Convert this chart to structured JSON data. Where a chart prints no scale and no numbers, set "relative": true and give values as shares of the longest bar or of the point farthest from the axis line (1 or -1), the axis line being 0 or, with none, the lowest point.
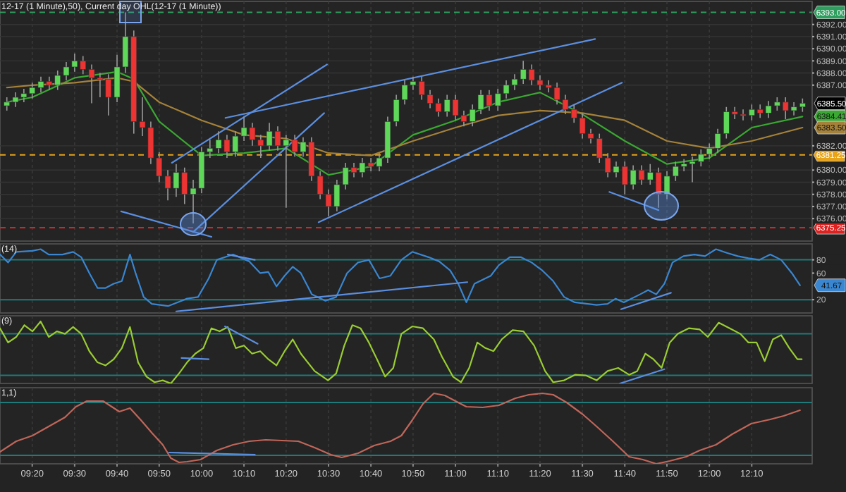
{
  "chart_data": [
    {
      "type": "candlestick",
      "title": "12-17 (1 Minute),50), Current day OHL(12-17 (1 Minute))",
      "tick_labels": "y",
      "grid": true,
      "xlim": [
        9.206,
        12.405
      ],
      "xticks": [
        {
          "value": 9.333,
          "label": null
        },
        {
          "value": 9.5,
          "label": null
        },
        {
          "value": 9.667,
          "label": null
        },
        {
          "value": 9.833,
          "label": null
        },
        {
          "value": 10,
          "label": null
        },
        {
          "value": 10.167,
          "label": null
        },
        {
          "value": 10.333,
          "label": null
        },
        {
          "value": 10.5,
          "label": null
        },
        {
          "value": 10.667,
          "label": null
        },
        {
          "value": 10.833,
          "label": null
        },
        {
          "value": 11,
          "label": null
        },
        {
          "value": 11.167,
          "label": null
        },
        {
          "value": 11.333,
          "label": null
        },
        {
          "value": 11.5,
          "label": null
        },
        {
          "value": 11.667,
          "label": null
        },
        {
          "value": 11.833,
          "label": null
        },
        {
          "value": 12,
          "label": null
        },
        {
          "value": 12.167,
          "label": null
        }
      ],
      "ylim": [
        6374.15,
        6393.9
      ],
      "yticks": [
        {
          "value": 6376,
          "label": "6376.00"
        },
        {
          "value": 6377,
          "label": "6377.00"
        },
        {
          "value": 6378,
          "label": "6378.00"
        },
        {
          "value": 6379,
          "label": "6379.00"
        },
        {
          "value": 6380,
          "label": "6380.00"
        },
        {
          "value": 6382,
          "label": "6382.00"
        },
        {
          "value": 6387,
          "label": "6387.00"
        },
        {
          "value": 6388,
          "label": "6388.00"
        },
        {
          "value": 6389,
          "label": "6389.00"
        },
        {
          "value": 6390,
          "label": "6390.00"
        },
        {
          "value": 6391,
          "label": "6391.00"
        },
        {
          "value": 6392,
          "label": "6392.00"
        }
      ],
      "x": [
        9.233,
        9.267,
        9.3,
        9.333,
        9.367,
        9.4,
        9.433,
        9.467,
        9.5,
        9.533,
        9.567,
        9.6,
        9.633,
        9.667,
        9.7,
        9.733,
        9.767,
        9.8,
        9.833,
        9.867,
        9.9,
        9.933,
        9.967,
        10,
        10.033,
        10.067,
        10.1,
        10.133,
        10.167,
        10.2,
        10.233,
        10.267,
        10.3,
        10.333,
        10.367,
        10.4,
        10.433,
        10.467,
        10.5,
        10.533,
        10.567,
        10.6,
        10.633,
        10.667,
        10.7,
        10.733,
        10.767,
        10.8,
        10.833,
        10.867,
        10.9,
        10.933,
        10.967,
        11,
        11.033,
        11.067,
        11.1,
        11.133,
        11.167,
        11.2,
        11.233,
        11.267,
        11.3,
        11.333,
        11.367,
        11.4,
        11.433,
        11.467,
        11.5,
        11.533,
        11.567,
        11.6,
        11.633,
        11.667,
        11.7,
        11.733,
        11.767,
        11.8,
        11.833,
        11.867,
        11.9,
        11.933,
        11.967,
        12,
        12.033,
        12.067,
        12.1,
        12.133,
        12.167,
        12.2,
        12.233,
        12.267,
        12.3,
        12.333,
        12.367
      ],
      "ohlc": [
        [
          6385.3,
          6386.0,
          6384.9,
          6385.6
        ],
        [
          6385.6,
          6386.4,
          6385.2,
          6386.0
        ],
        [
          6386.0,
          6386.7,
          6385.6,
          6386.3
        ],
        [
          6386.3,
          6387.2,
          6385.9,
          6386.8
        ],
        [
          6386.8,
          6387.7,
          6386.4,
          6387.3
        ],
        [
          6387.3,
          6387.7,
          6386.6,
          6387.0
        ],
        [
          6387.0,
          6388.2,
          6386.6,
          6387.8
        ],
        [
          6387.8,
          6388.9,
          6387.4,
          6388.5
        ],
        [
          6388.5,
          6389.6,
          6388.1,
          6389.0
        ],
        [
          6389.0,
          6389.4,
          6387.9,
          6388.3
        ],
        [
          6388.3,
          6388.7,
          6385.5,
          6387.6
        ],
        [
          6387.6,
          6388.0,
          6386.0,
          6387.5
        ],
        [
          6387.5,
          6387.9,
          6384.5,
          6386.0
        ],
        [
          6386.0,
          6389.5,
          6385.6,
          6388.5
        ],
        [
          6388.5,
          6393.0,
          6388.0,
          6391.0
        ],
        [
          6391.0,
          6391.5,
          6383.0,
          6384.0
        ],
        [
          6384.0,
          6386.0,
          6382.8,
          6383.5
        ],
        [
          6383.5,
          6384.0,
          6380.5,
          6381.0
        ],
        [
          6381.0,
          6381.5,
          6379.0,
          6379.5
        ],
        [
          6379.5,
          6380.0,
          6377.5,
          6378.5
        ],
        [
          6378.5,
          6380.5,
          6377.8,
          6379.8
        ],
        [
          6379.8,
          6380.2,
          6377.2,
          6378.0
        ],
        [
          6378.0,
          6379.2,
          6375.6,
          6378.5
        ],
        [
          6378.5,
          6381.9,
          6378.1,
          6381.5
        ],
        [
          6381.5,
          6382.5,
          6381.0,
          6381.8
        ],
        [
          6381.8,
          6383.2,
          6381.4,
          6382.5
        ],
        [
          6382.5,
          6382.9,
          6381.0,
          6381.5
        ],
        [
          6381.5,
          6383.2,
          6381.1,
          6382.8
        ],
        [
          6382.8,
          6384.4,
          6382.4,
          6383.5
        ],
        [
          6383.5,
          6383.9,
          6382.0,
          6382.5
        ],
        [
          6382.5,
          6382.9,
          6381.0,
          6382.0
        ],
        [
          6382.0,
          6383.9,
          6381.6,
          6383.2
        ],
        [
          6383.2,
          6383.6,
          6381.6,
          6382.0
        ],
        [
          6382.0,
          6382.9,
          6376.9,
          6382.5
        ],
        [
          6382.5,
          6382.9,
          6381.1,
          6381.5
        ],
        [
          6381.5,
          6382.7,
          6381.1,
          6382.3
        ],
        [
          6382.3,
          6382.7,
          6379.1,
          6379.5
        ],
        [
          6379.5,
          6379.9,
          6377.6,
          6378.0
        ],
        [
          6378.0,
          6378.4,
          6376.2,
          6377.0
        ],
        [
          6377.0,
          6379.2,
          6376.6,
          6378.8
        ],
        [
          6378.8,
          6380.6,
          6378.4,
          6380.2
        ],
        [
          6380.2,
          6380.6,
          6379.4,
          6379.8
        ],
        [
          6379.8,
          6381.0,
          6379.4,
          6380.6
        ],
        [
          6380.6,
          6381.0,
          6379.9,
          6380.3
        ],
        [
          6380.3,
          6381.4,
          6379.9,
          6381.0
        ],
        [
          6381.0,
          6384.4,
          6380.6,
          6384.0
        ],
        [
          6384.0,
          6386.2,
          6383.6,
          6385.8
        ],
        [
          6385.8,
          6387.4,
          6385.4,
          6387.0
        ],
        [
          6387.0,
          6387.7,
          6386.6,
          6387.3
        ],
        [
          6387.3,
          6387.7,
          6385.8,
          6386.2
        ],
        [
          6386.2,
          6386.6,
          6385.1,
          6385.5
        ],
        [
          6385.5,
          6385.9,
          6384.4,
          6384.8
        ],
        [
          6384.8,
          6386.2,
          6384.4,
          6385.8
        ],
        [
          6385.8,
          6386.2,
          6384.1,
          6384.5
        ],
        [
          6384.5,
          6384.9,
          6383.6,
          6384.0
        ],
        [
          6384.0,
          6385.4,
          6383.6,
          6385.0
        ],
        [
          6385.0,
          6386.6,
          6384.6,
          6386.2
        ],
        [
          6386.2,
          6386.6,
          6384.9,
          6385.3
        ],
        [
          6385.3,
          6386.7,
          6384.9,
          6386.3
        ],
        [
          6386.3,
          6387.4,
          6385.9,
          6387.0
        ],
        [
          6387.0,
          6387.9,
          6386.6,
          6387.5
        ],
        [
          6387.5,
          6389.0,
          6387.1,
          6388.3
        ],
        [
          6388.3,
          6388.7,
          6387.0,
          6387.4
        ],
        [
          6387.4,
          6387.8,
          6386.6,
          6387.0
        ],
        [
          6387.0,
          6387.4,
          6386.4,
          6386.8
        ],
        [
          6386.8,
          6387.2,
          6385.4,
          6385.8
        ],
        [
          6385.8,
          6386.2,
          6384.6,
          6385.0
        ],
        [
          6385.0,
          6385.4,
          6383.9,
          6384.3
        ],
        [
          6384.3,
          6384.7,
          6382.6,
          6383.0
        ],
        [
          6383.0,
          6383.4,
          6382.2,
          6382.6
        ],
        [
          6382.6,
          6383.0,
          6380.6,
          6381.0
        ],
        [
          6381.0,
          6381.4,
          6379.4,
          6379.8
        ],
        [
          6379.8,
          6380.7,
          6379.4,
          6380.3
        ],
        [
          6380.3,
          6380.7,
          6378.0,
          6378.8
        ],
        [
          6378.8,
          6380.4,
          6378.4,
          6380.0
        ],
        [
          6380.0,
          6380.4,
          6378.8,
          6379.2
        ],
        [
          6379.2,
          6380.5,
          6378.8,
          6379.8
        ],
        [
          6379.8,
          6380.2,
          6376.9,
          6378.0
        ],
        [
          6378.0,
          6379.9,
          6377.6,
          6379.5
        ],
        [
          6379.5,
          6380.7,
          6379.1,
          6380.3
        ],
        [
          6380.3,
          6380.9,
          6379.9,
          6380.5
        ],
        [
          6380.5,
          6381.1,
          6379.0,
          6380.7
        ],
        [
          6380.7,
          6381.7,
          6380.3,
          6381.3
        ],
        [
          6381.3,
          6382.2,
          6380.9,
          6381.8
        ],
        [
          6381.8,
          6383.4,
          6381.4,
          6383.0
        ],
        [
          6383.0,
          6385.2,
          6382.6,
          6384.8
        ],
        [
          6384.8,
          6385.2,
          6384.2,
          6384.6
        ],
        [
          6384.6,
          6385.0,
          6384.1,
          6384.5
        ],
        [
          6384.5,
          6385.4,
          6384.1,
          6385.0
        ],
        [
          6385.0,
          6385.4,
          6384.3,
          6384.7
        ],
        [
          6384.7,
          6385.7,
          6384.3,
          6385.3
        ],
        [
          6385.3,
          6386.0,
          6384.9,
          6385.6
        ],
        [
          6385.6,
          6386.0,
          6384.2,
          6384.9
        ],
        [
          6384.9,
          6385.6,
          6384.5,
          6385.2
        ],
        [
          6385.2,
          6385.9,
          6384.8,
          6385.5
        ]
      ],
      "series": [
        {
          "type": "line",
          "color": "#3aa832",
          "x": [
            9.233,
            9.333,
            9.5,
            9.667,
            9.733,
            9.833,
            10,
            10.167,
            10.333,
            10.5,
            10.667,
            10.833,
            11,
            11.167,
            11.333,
            11.5,
            11.667,
            11.833,
            12,
            12.167,
            12.367
          ],
          "values": [
            6385.6,
            6386.0,
            6387.6,
            6388.1,
            6387.5,
            6384.0,
            6381.2,
            6381.4,
            6381.8,
            6379.6,
            6380.3,
            6382.9,
            6384.1,
            6385.6,
            6386.4,
            6384.6,
            6382.4,
            6380.5,
            6381.0,
            6383.5,
            6384.41
          ]
        },
        {
          "type": "line",
          "color": "#a5823a",
          "x": [
            9.233,
            9.333,
            9.5,
            9.667,
            9.733,
            9.833,
            10,
            10.167,
            10.333,
            10.5,
            10.667,
            10.833,
            11,
            11.167,
            11.333,
            11.5,
            11.667,
            11.833,
            12,
            12.167,
            12.367
          ],
          "values": [
            6386.8,
            6387.0,
            6387.2,
            6387.6,
            6387.3,
            6385.6,
            6384.1,
            6382.9,
            6382.6,
            6381.4,
            6381.2,
            6382.4,
            6383.5,
            6384.5,
            6384.9,
            6384.7,
            6384.1,
            6382.4,
            6381.8,
            6382.4,
            6383.5
          ]
        },
        {
          "type": "line",
          "color": "#5b8ee0",
          "x": [
            9.683,
            10.039
          ],
          "values": [
            6376.6,
            6374.5
          ]
        },
        {
          "type": "line",
          "color": "#5b8ee0",
          "x": [
            9.883,
            10.494
          ],
          "values": [
            6380.6,
            6388.7
          ]
        },
        {
          "type": "line",
          "color": "#5b8ee0",
          "x": [
            10.094,
            11.55
          ],
          "values": [
            6384.3,
            6390.8
          ]
        },
        {
          "type": "line",
          "color": "#5b8ee0",
          "x": [
            9.967,
            10.483
          ],
          "values": [
            6374.9,
            6384.7
          ]
        },
        {
          "type": "line",
          "color": "#5b8ee0",
          "x": [
            10.461,
            11.656
          ],
          "values": [
            6375.7,
            6387.2
          ]
        },
        {
          "type": "line",
          "color": "#5b8ee0",
          "x": [
            11.606,
            11.8
          ],
          "values": [
            6378.2,
            6376.7
          ]
        }
      ],
      "ref_lines": [
        {
          "axis": "y",
          "value": 6393,
          "label": "6393.00",
          "color": "#2e9e5e",
          "line_style": "dashed"
        },
        {
          "axis": "y",
          "value": 6381.25,
          "label": "6381.25",
          "color": "#e8a317",
          "line_style": "dashed"
        },
        {
          "axis": "y",
          "value": 6375.25,
          "label": "6375.25",
          "color": "#dd2222",
          "line_style": "dashed"
        }
      ],
      "annotations": [
        {
          "text": "6385.50",
          "y": 6385.5
        },
        {
          "text": "6384.41",
          "y": 6384.41
        },
        {
          "text": "6383.50",
          "y": 6383.5
        }
      ]
    },
    {
      "type": "line",
      "title": "(14)",
      "tick_labels": "y",
      "grid": "x",
      "xlim": [
        9.206,
        12.405
      ],
      "xticks": [
        {
          "value": 9.333,
          "label": null
        },
        {
          "value": 9.5,
          "label": null
        },
        {
          "value": 9.667,
          "label": null
        },
        {
          "value": 9.833,
          "label": null
        },
        {
          "value": 10,
          "label": null
        },
        {
          "value": 10.167,
          "label": null
        },
        {
          "value": 10.333,
          "label": null
        },
        {
          "value": 10.5,
          "label": null
        },
        {
          "value": 10.667,
          "label": null
        },
        {
          "value": 10.833,
          "label": null
        },
        {
          "value": 11,
          "label": null
        },
        {
          "value": 11.167,
          "label": null
        },
        {
          "value": 11.333,
          "label": null
        },
        {
          "value": 11.5,
          "label": null
        },
        {
          "value": 11.667,
          "label": null
        },
        {
          "value": 11.833,
          "label": null
        },
        {
          "value": 12,
          "label": null
        },
        {
          "value": 12.167,
          "label": null
        }
      ],
      "ylim": [
        0,
        104
      ],
      "yticks": [
        20,
        60,
        80
      ],
      "series": [
        {
          "color": "#3a86d0",
          "x": [
            9.206,
            9.238,
            9.27,
            9.334,
            9.366,
            9.398,
            9.452,
            9.494,
            9.526,
            9.558,
            9.59,
            9.622,
            9.654,
            9.686,
            9.718,
            9.74,
            9.772,
            9.804,
            9.868,
            9.943,
            9.986,
            10.028,
            10.06,
            10.124,
            10.188,
            10.231,
            10.263,
            10.295,
            10.327,
            10.359,
            10.391,
            10.434,
            10.488,
            10.53,
            10.573,
            10.616,
            10.659,
            10.701,
            10.744,
            10.787,
            10.83,
            10.894,
            10.936,
            10.979,
            11.011,
            11.043,
            11.075,
            11.139,
            11.171,
            11.214,
            11.257,
            11.3,
            11.342,
            11.385,
            11.428,
            11.47,
            11.556,
            11.599,
            11.631,
            11.663,
            11.727,
            11.759,
            11.791,
            11.823,
            11.855,
            11.898,
            11.941,
            11.983,
            12.026,
            12.069,
            12.112,
            12.154,
            12.197,
            12.24,
            12.283,
            12.325,
            12.357
          ],
          "values": [
            88,
            76,
            92,
            93.6,
            96,
            88,
            88,
            92,
            84,
            60,
            37.6,
            37.6,
            44,
            48,
            88,
            60,
            24,
            13.6,
            10.4,
            21.6,
            24,
            52,
            80,
            88,
            77.6,
            60,
            61.6,
            40,
            56,
            69.6,
            60,
            28,
            18.4,
            24,
            60,
            76,
            80,
            52,
            56,
            80,
            92,
            84,
            77.6,
            64,
            44,
            16,
            44,
            56,
            72,
            84,
            84,
            76,
            64,
            48,
            24,
            16,
            12,
            13.6,
            21.6,
            16,
            28,
            34.4,
            28,
            44,
            76,
            85.6,
            88,
            85.6,
            96,
            90.4,
            85.6,
            82.4,
            80,
            88,
            80,
            60,
            41.67
          ]
        },
        {
          "color": "#5b8ee0",
          "x": [
            10.103,
            10.21
          ],
          "values": [
            88,
            80
          ]
        },
        {
          "color": "#5b8ee0",
          "x": [
            9.9,
            11.047
          ],
          "values": [
            2.4,
            46.4
          ]
        },
        {
          "color": "#5b8ee0",
          "x": [
            11.652,
            11.849
          ],
          "values": [
            5.6,
            30.4
          ]
        }
      ],
      "ref_lines": [
        {
          "axis": "y",
          "value": 80,
          "color": "#1e7b7b"
        },
        {
          "axis": "y",
          "value": 20,
          "color": "#1e7b7b"
        }
      ],
      "annotations": [
        {
          "text": "41.67",
          "y": 41.67
        }
      ]
    },
    {
      "type": "line",
      "title": "(9)",
      "tick_labels": false,
      "grid": "x",
      "relative": true,
      "xlim": [
        9.206,
        12.405
      ],
      "xticks": [
        {
          "value": 9.333,
          "label": null
        },
        {
          "value": 9.5,
          "label": null
        },
        {
          "value": 9.667,
          "label": null
        },
        {
          "value": 9.833,
          "label": null
        },
        {
          "value": 10,
          "label": null
        },
        {
          "value": 10.167,
          "label": null
        },
        {
          "value": 10.333,
          "label": null
        },
        {
          "value": 10.5,
          "label": null
        },
        {
          "value": 10.667,
          "label": null
        },
        {
          "value": 10.833,
          "label": null
        },
        {
          "value": 11,
          "label": null
        },
        {
          "value": 11.167,
          "label": null
        },
        {
          "value": 11.333,
          "label": null
        },
        {
          "value": 11.5,
          "label": null
        },
        {
          "value": 11.667,
          "label": null
        },
        {
          "value": 11.833,
          "label": null
        },
        {
          "value": 12,
          "label": null
        },
        {
          "value": 12.167,
          "label": null
        }
      ],
      "series": [
        {
          "color": "#9acd32",
          "x": [
            9.206,
            9.238,
            9.27,
            9.302,
            9.334,
            9.366,
            9.398,
            9.43,
            9.462,
            9.494,
            9.526,
            9.558,
            9.59,
            9.622,
            9.654,
            9.686,
            9.718,
            9.75,
            9.783,
            9.815,
            9.847,
            9.879,
            9.911,
            9.943,
            9.975,
            10.007,
            10.039,
            10.071,
            10.103,
            10.135,
            10.167,
            10.199,
            10.231,
            10.263,
            10.295,
            10.327,
            10.359,
            10.391,
            10.445,
            10.498,
            10.53,
            10.562,
            10.594,
            10.626,
            10.659,
            10.691,
            10.723,
            10.755,
            10.787,
            10.83,
            10.872,
            10.915,
            10.947,
            10.99,
            11.022,
            11.054,
            11.086,
            11.118,
            11.15,
            11.182,
            11.225,
            11.268,
            11.31,
            11.353,
            11.385,
            11.428,
            11.471,
            11.513,
            11.556,
            11.599,
            11.641,
            11.684,
            11.716,
            11.748,
            11.78,
            11.812,
            11.844,
            11.876,
            11.919,
            11.962,
            11.994,
            12.037,
            12.08,
            12.122,
            12.154,
            12.186,
            12.218,
            12.25,
            12.283,
            12.315,
            12.347,
            12.364
          ],
          "values": [
            0.89,
            0.66,
            0.75,
            0.94,
            0.84,
            1,
            0.75,
            0.84,
            0.8,
            0.91,
            0.8,
            0.52,
            0.34,
            0.29,
            0.39,
            0.57,
            0.91,
            0.34,
            0.11,
            0.02,
            0.05,
            0,
            0.16,
            0.34,
            0.48,
            0.57,
            0.89,
            0.84,
            0.91,
            0.57,
            0.61,
            0.48,
            0.52,
            0.39,
            0.29,
            0.52,
            0.71,
            0.48,
            0.2,
            0.05,
            0.16,
            0.61,
            0.94,
            0.89,
            0.66,
            0.39,
            0.11,
            0.25,
            0.8,
            0.92,
            0.89,
            0.71,
            0.43,
            0.11,
            0.02,
            0.25,
            0.66,
            0.57,
            0.52,
            0.71,
            0.86,
            0.84,
            0.61,
            0.2,
            0.02,
            0.05,
            0.14,
            0.13,
            0.05,
            0.2,
            0.25,
            0.14,
            0.2,
            0.48,
            0.39,
            0.25,
            0.66,
            0.8,
            0.89,
            0.87,
            0.75,
            0.98,
            0.89,
            0.8,
            0.66,
            0.66,
            0.36,
            0.71,
            0.78,
            0.57,
            0.39,
            0.39
          ]
        },
        {
          "color": "#5b8ee0",
          "x": [
            9.921,
            10.028
          ],
          "values": [
            0.41,
            0.39
          ]
        },
        {
          "color": "#5b8ee0",
          "x": [
            10.092,
            10.221
          ],
          "values": [
            0.92,
            0.64
          ]
        },
        {
          "color": "#5b8ee0",
          "x": [
            11.648,
            11.823
          ],
          "values": [
            0,
            0.23
          ]
        }
      ],
      "ref_lines": [
        {
          "axis": "y",
          "value": 0.8,
          "color": "#1e7b7b"
        },
        {
          "axis": "y",
          "value": 0.13,
          "color": "#1e7b7b"
        }
      ]
    },
    {
      "type": "line",
      "title": "1,1)",
      "tick_labels": "x",
      "grid": "x",
      "relative": true,
      "xlim": [
        9.206,
        12.405
      ],
      "xticks": [
        {
          "value": 9.333,
          "label": "09:20"
        },
        {
          "value": 9.5,
          "label": "09:30"
        },
        {
          "value": 9.667,
          "label": "09:40"
        },
        {
          "value": 9.833,
          "label": "09:50"
        },
        {
          "value": 10,
          "label": "10:00"
        },
        {
          "value": 10.167,
          "label": "10:10"
        },
        {
          "value": 10.333,
          "label": "10:20"
        },
        {
          "value": 10.5,
          "label": "10:30"
        },
        {
          "value": 10.667,
          "label": "10:40"
        },
        {
          "value": 10.833,
          "label": "10:50"
        },
        {
          "value": 11,
          "label": "11:00"
        },
        {
          "value": 11.167,
          "label": "11:10"
        },
        {
          "value": 11.333,
          "label": "11:20"
        },
        {
          "value": 11.5,
          "label": "11:30"
        },
        {
          "value": 11.667,
          "label": "11:40"
        },
        {
          "value": 11.833,
          "label": "11:50"
        },
        {
          "value": 12,
          "label": "12:00"
        },
        {
          "value": 12.167,
          "label": "12:10"
        }
      ],
      "series": [
        {
          "color": "#c0665a",
          "x": [
            9.206,
            9.27,
            9.334,
            9.398,
            9.462,
            9.505,
            9.548,
            9.612,
            9.676,
            9.718,
            9.761,
            9.804,
            9.847,
            9.879,
            9.911,
            9.943,
            9.996,
            10.06,
            10.124,
            10.188,
            10.253,
            10.317,
            10.381,
            10.445,
            10.509,
            10.552,
            10.616,
            10.68,
            10.744,
            10.787,
            10.83,
            10.872,
            10.915,
            10.958,
            11,
            11.043,
            11.107,
            11.171,
            11.236,
            11.289,
            11.342,
            11.385,
            11.438,
            11.502,
            11.556,
            11.62,
            11.684,
            11.738,
            11.791,
            11.844,
            11.908,
            11.962,
            12.026,
            12.09,
            12.165,
            12.24,
            12.293,
            12.357
          ],
          "values": [
            0.17,
            0.32,
            0.4,
            0.53,
            0.66,
            0.81,
            0.89,
            0.89,
            0.74,
            0.79,
            0.62,
            0.44,
            0.27,
            0.08,
            0.02,
            0.03,
            0.06,
            0.19,
            0.27,
            0.32,
            0.34,
            0.33,
            0.32,
            0.23,
            0.13,
            0.09,
            0.15,
            0.26,
            0.32,
            0.4,
            0.62,
            0.85,
            1,
            0.97,
            0.89,
            0.81,
            0.8,
            0.83,
            0.93,
            0.98,
            1,
            0.98,
            0.87,
            0.7,
            0.53,
            0.32,
            0.1,
            0.06,
            0,
            0.04,
            0.1,
            0.19,
            0.27,
            0.42,
            0.57,
            0.63,
            0.68,
            0.76
          ]
        },
        {
          "color": "#5b8ee0",
          "x": [
            9.872,
            10.21
          ],
          "values": [
            0.16,
            0.13
          ]
        }
      ],
      "ref_lines": [
        {
          "axis": "y",
          "value": 0.87,
          "color": "#1e7b7b"
        },
        {
          "axis": "y",
          "value": 0.12,
          "color": "#1e7b7b"
        }
      ]
    }
  ]
}
